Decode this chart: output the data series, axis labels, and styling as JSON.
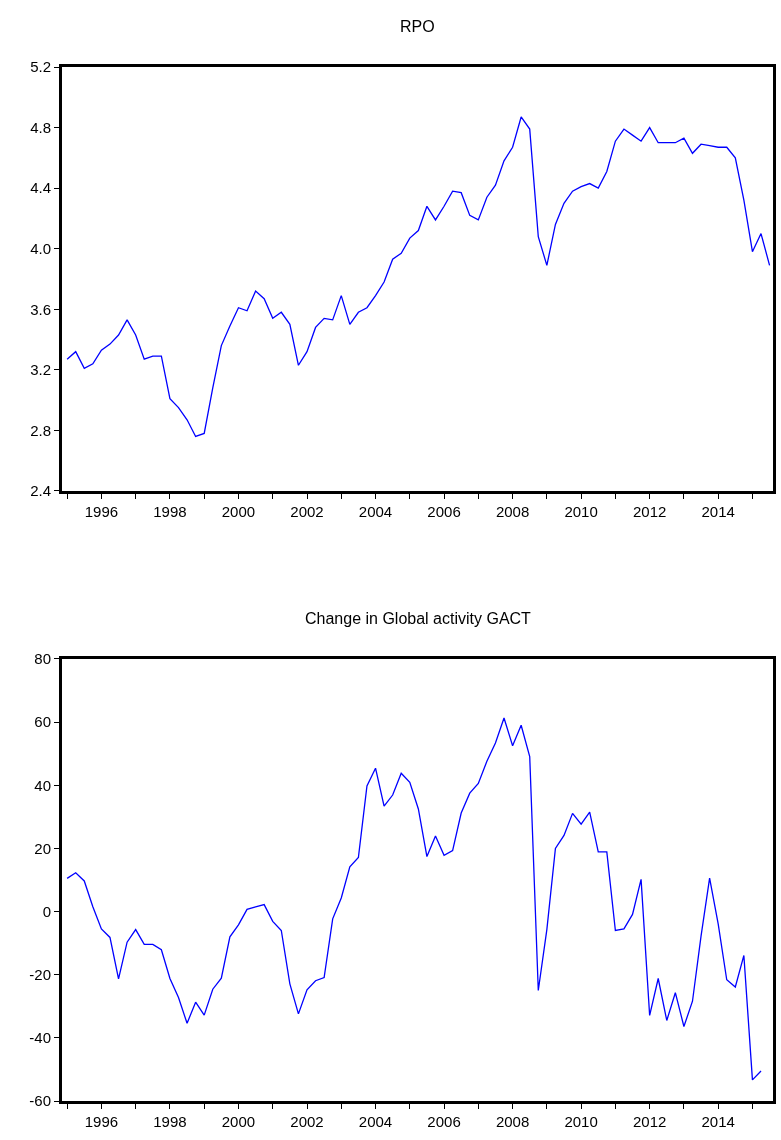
{
  "chart_data": [
    {
      "type": "line",
      "title": "RPO",
      "x": [
        1995.0,
        1995.25,
        1995.5,
        1995.75,
        1996.0,
        1996.25,
        1996.5,
        1996.75,
        1997.0,
        1997.25,
        1997.5,
        1997.75,
        1998.0,
        1998.25,
        1998.5,
        1998.75,
        1999.0,
        1999.25,
        1999.5,
        1999.75,
        2000.0,
        2000.25,
        2000.5,
        2000.75,
        2001.0,
        2001.25,
        2001.5,
        2001.75,
        2002.0,
        2002.25,
        2002.5,
        2002.75,
        2003.0,
        2003.25,
        2003.5,
        2003.75,
        2004.0,
        2004.25,
        2004.5,
        2004.75,
        2005.0,
        2005.25,
        2005.5,
        2005.75,
        2006.0,
        2006.25,
        2006.5,
        2006.75,
        2007.0,
        2007.25,
        2007.5,
        2007.75,
        2008.0,
        2008.25,
        2008.5,
        2008.75,
        2009.0,
        2009.25,
        2009.5,
        2009.75,
        2010.0,
        2010.25,
        2010.5,
        2010.75,
        2011.0,
        2011.25,
        2011.5,
        2011.75,
        2012.0,
        2012.25,
        2012.5,
        2012.75,
        2013.0,
        2013.25,
        2013.5,
        2013.75,
        2014.0,
        2014.25,
        2014.5,
        2014.75,
        2015.0,
        2015.25,
        2015.5
      ],
      "series": [
        {
          "color": "#0000ff",
          "values": [
            3.27,
            3.32,
            3.21,
            3.24,
            3.33,
            3.37,
            3.43,
            3.53,
            3.43,
            3.27,
            3.29,
            3.29,
            3.01,
            2.95,
            2.87,
            2.76,
            2.78,
            3.08,
            3.36,
            3.49,
            3.61,
            3.59,
            3.72,
            3.67,
            3.54,
            3.58,
            3.5,
            3.23,
            3.32,
            3.48,
            3.54,
            3.53,
            3.69,
            3.5,
            3.58,
            3.61,
            3.69,
            3.78,
            3.93,
            3.97,
            4.07,
            4.12,
            4.28,
            4.19,
            4.28,
            4.38,
            4.37,
            4.22,
            4.19,
            4.34,
            4.42,
            4.58,
            4.67,
            4.87,
            4.79,
            4.08,
            3.89,
            4.16,
            4.3,
            4.38,
            4.41,
            4.43,
            4.4,
            4.51,
            4.71,
            4.79,
            4.75,
            4.71,
            4.8,
            4.7,
            4.7,
            4.7,
            4.73,
            4.63,
            4.69,
            4.68,
            4.67,
            4.67,
            4.6,
            4.32,
            3.98,
            4.1,
            3.89
          ]
        }
      ],
      "xlim": [
        1994.85,
        2015.6
      ],
      "xticks": [
        {
          "value": 1995,
          "label": null
        },
        1996,
        {
          "value": 1997,
          "label": null
        },
        1998,
        {
          "value": 1999,
          "label": null
        },
        2000,
        {
          "value": 2001,
          "label": null
        },
        2002,
        {
          "value": 2003,
          "label": null
        },
        2004,
        {
          "value": 2005,
          "label": null
        },
        2006,
        {
          "value": 2007,
          "label": null
        },
        2008,
        {
          "value": 2009,
          "label": null
        },
        2010,
        {
          "value": 2011,
          "label": null
        },
        2012,
        {
          "value": 2013,
          "label": null
        },
        2014,
        {
          "value": 2015,
          "label": null
        }
      ],
      "ylim": [
        2.4,
        5.2
      ],
      "yticks": [
        2.4,
        2.8,
        3.2,
        3.6,
        {
          "value": 4.0,
          "label": "4.0"
        },
        4.4,
        4.8,
        5.2
      ],
      "grid": false,
      "line_style": "solid",
      "marker": "none"
    },
    {
      "type": "line",
      "title": "Change in Global activity GACT",
      "x": [
        1995.0,
        1995.25,
        1995.5,
        1995.75,
        1996.0,
        1996.25,
        1996.5,
        1996.75,
        1997.0,
        1997.25,
        1997.5,
        1997.75,
        1998.0,
        1998.25,
        1998.5,
        1998.75,
        1999.0,
        1999.25,
        1999.5,
        1999.75,
        2000.0,
        2000.25,
        2000.5,
        2000.75,
        2001.0,
        2001.25,
        2001.5,
        2001.75,
        2002.0,
        2002.25,
        2002.5,
        2002.75,
        2003.0,
        2003.25,
        2003.5,
        2003.75,
        2004.0,
        2004.25,
        2004.5,
        2004.75,
        2005.0,
        2005.25,
        2005.5,
        2005.75,
        2006.0,
        2006.25,
        2006.5,
        2006.75,
        2007.0,
        2007.25,
        2007.5,
        2007.75,
        2008.0,
        2008.25,
        2008.5,
        2008.75,
        2009.0,
        2009.25,
        2009.5,
        2009.75,
        2010.0,
        2010.25,
        2010.5,
        2010.75,
        2011.0,
        2011.25,
        2011.5,
        2011.75,
        2012.0,
        2012.25,
        2012.5,
        2012.75,
        2013.0,
        2013.25,
        2013.5,
        2013.75,
        2014.0,
        2014.25,
        2014.5,
        2014.75,
        2015.0,
        2015.25
      ],
      "series": [
        {
          "color": "#0000ff",
          "values": [
            10.5,
            12.3,
            9.7,
            1.5,
            -5.5,
            -8.2,
            -21.3,
            -9.7,
            -5.7,
            -10.4,
            -10.4,
            -12.1,
            -21.2,
            -27.2,
            -35.4,
            -28.7,
            -32.8,
            -24.6,
            -21.1,
            -8.0,
            -4.2,
            0.7,
            1.5,
            2.2,
            -3.1,
            -6.0,
            -22.9,
            -32.4,
            -24.8,
            -21.9,
            -20.9,
            -2.3,
            4.3,
            14.2,
            17.1,
            39.8,
            45.4,
            33.4,
            36.9,
            43.8,
            40.9,
            32.5,
            17.4,
            23.9,
            17.8,
            19.3,
            31.2,
            37.5,
            40.6,
            47.6,
            53.4,
            61.3,
            52.5,
            59.0,
            49.1,
            -25.0,
            -5.7,
            20.0,
            24.1,
            31.1,
            27.7,
            31.5,
            18.9,
            18.9,
            -6.0,
            -5.5,
            -0.9,
            10.2,
            -32.9,
            -21.2,
            -34.5,
            -25.7,
            -36.4,
            -28.4,
            -7.8,
            10.6,
            -3.9,
            -21.6,
            -23.9,
            -13.9,
            -53.3,
            -50.5
          ]
        }
      ],
      "xlim": [
        1994.85,
        2015.6
      ],
      "xticks": [
        {
          "value": 1995,
          "label": null
        },
        1996,
        {
          "value": 1997,
          "label": null
        },
        1998,
        {
          "value": 1999,
          "label": null
        },
        2000,
        {
          "value": 2001,
          "label": null
        },
        2002,
        {
          "value": 2003,
          "label": null
        },
        2004,
        {
          "value": 2005,
          "label": null
        },
        2006,
        {
          "value": 2007,
          "label": null
        },
        2008,
        {
          "value": 2009,
          "label": null
        },
        2010,
        {
          "value": 2011,
          "label": null
        },
        2012,
        {
          "value": 2013,
          "label": null
        },
        2014,
        {
          "value": 2015,
          "label": null
        }
      ],
      "ylim": [
        -60,
        80
      ],
      "yticks": [
        -60,
        -40,
        -20,
        0,
        20,
        40,
        60,
        80
      ],
      "grid": false,
      "line_style": "solid",
      "marker": "none"
    }
  ]
}
